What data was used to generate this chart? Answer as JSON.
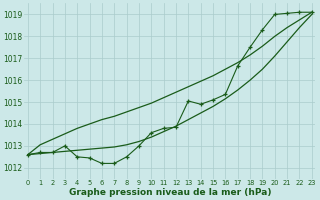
{
  "bg_color": "#cce8e8",
  "grid_color": "#aacccc",
  "line_color": "#1a5c1a",
  "xlabel": "Graphe pression niveau de la mer (hPa)",
  "ylim": [
    1011.5,
    1019.5
  ],
  "xlim": [
    -0.3,
    23.3
  ],
  "yticks": [
    1012,
    1013,
    1014,
    1015,
    1016,
    1017,
    1018,
    1019
  ],
  "xticks": [
    0,
    1,
    2,
    3,
    4,
    5,
    6,
    7,
    8,
    9,
    10,
    11,
    12,
    13,
    14,
    15,
    16,
    17,
    18,
    19,
    20,
    21,
    22,
    23
  ],
  "marker_series": [
    1012.6,
    1012.7,
    1012.7,
    1013.0,
    1012.5,
    1012.45,
    1012.2,
    1012.2,
    1012.5,
    1013.0,
    1013.6,
    1013.8,
    1013.85,
    1015.05,
    1014.9,
    1015.1,
    1015.35,
    1016.65,
    1017.5,
    1018.3,
    1019.0,
    1019.05,
    1019.1,
    1019.1
  ],
  "smooth_upper": [
    1012.6,
    1013.05,
    1013.3,
    1013.55,
    1013.8,
    1014.0,
    1014.2,
    1014.35,
    1014.55,
    1014.75,
    1014.95,
    1015.2,
    1015.45,
    1015.7,
    1015.95,
    1016.2,
    1016.5,
    1016.8,
    1017.15,
    1017.55,
    1018.0,
    1018.4,
    1018.75,
    1019.1
  ],
  "smooth_lower": [
    1012.6,
    1012.65,
    1012.7,
    1012.75,
    1012.8,
    1012.85,
    1012.9,
    1012.95,
    1013.05,
    1013.2,
    1013.4,
    1013.65,
    1013.9,
    1014.2,
    1014.5,
    1014.8,
    1015.15,
    1015.55,
    1016.0,
    1016.5,
    1017.1,
    1017.75,
    1018.4,
    1019.0
  ]
}
